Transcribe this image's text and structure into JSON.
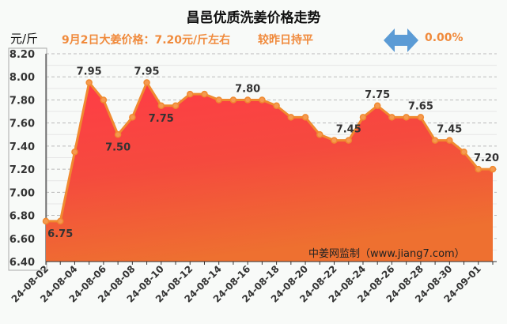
{
  "header": {
    "title": "昌邑优质洗姜价格走势",
    "unit": "元/斤",
    "price_text": "9月2日大姜价格：7.20元/斤左右",
    "compare_text": "较昨日持平",
    "compare_icon": "double-arrow-icon",
    "change_pct": "0.00%",
    "arrow_color": "#5b9bd5"
  },
  "watermark": "中姜网监制（www.jiang7.com）",
  "chart_data": {
    "type": "area",
    "title": "昌邑优质洗姜价格走势",
    "ylabel": "元/斤",
    "ylim": [
      6.4,
      8.2
    ],
    "yticks": [
      "6.40",
      "6.60",
      "6.80",
      "7.00",
      "7.20",
      "7.40",
      "7.60",
      "7.80",
      "8.00",
      "8.20"
    ],
    "x": [
      "24-08-02",
      "24-08-03",
      "24-08-04",
      "24-08-05",
      "24-08-06",
      "24-08-07",
      "24-08-08",
      "24-08-09",
      "24-08-10",
      "24-08-11",
      "24-08-12",
      "24-08-13",
      "24-08-14",
      "24-08-15",
      "24-08-16",
      "24-08-17",
      "24-08-18",
      "24-08-19",
      "24-08-20",
      "24-08-21",
      "24-08-22",
      "24-08-23",
      "24-08-24",
      "24-08-25",
      "24-08-26",
      "24-08-27",
      "24-08-28",
      "24-08-29",
      "24-08-30",
      "24-08-31",
      "24-09-01",
      "24-09-02"
    ],
    "xtick_labels": [
      "24-08-02",
      "24-08-04",
      "24-08-06",
      "24-08-08",
      "24-08-10",
      "24-08-12",
      "24-08-14",
      "24-08-16",
      "24-08-18",
      "24-08-20",
      "24-08-22",
      "24-08-24",
      "24-08-26",
      "24-08-28",
      "24-08-30",
      "24-09-01"
    ],
    "values": [
      6.75,
      6.75,
      7.35,
      7.95,
      7.8,
      7.5,
      7.65,
      7.95,
      7.75,
      7.75,
      7.85,
      7.85,
      7.8,
      7.8,
      7.8,
      7.8,
      7.75,
      7.65,
      7.65,
      7.5,
      7.45,
      7.45,
      7.65,
      7.75,
      7.65,
      7.65,
      7.65,
      7.45,
      7.45,
      7.35,
      7.2,
      7.2
    ],
    "data_labels": [
      {
        "index": 1,
        "text": "6.75",
        "pos": "below"
      },
      {
        "index": 3,
        "text": "7.95",
        "pos": "above"
      },
      {
        "index": 5,
        "text": "7.50",
        "pos": "below"
      },
      {
        "index": 7,
        "text": "7.95",
        "pos": "above"
      },
      {
        "index": 8,
        "text": "7.75",
        "pos": "below"
      },
      {
        "index": 14,
        "text": "7.80",
        "pos": "above"
      },
      {
        "index": 21,
        "text": "7.45",
        "pos": "above"
      },
      {
        "index": 23,
        "text": "7.75",
        "pos": "above"
      },
      {
        "index": 26,
        "text": "7.65",
        "pos": "above"
      },
      {
        "index": 28,
        "text": "7.45",
        "pos": "above"
      },
      {
        "index": 31,
        "text": "7.20",
        "pos": "above"
      }
    ],
    "line_color": "#f08a30",
    "grid": true
  }
}
